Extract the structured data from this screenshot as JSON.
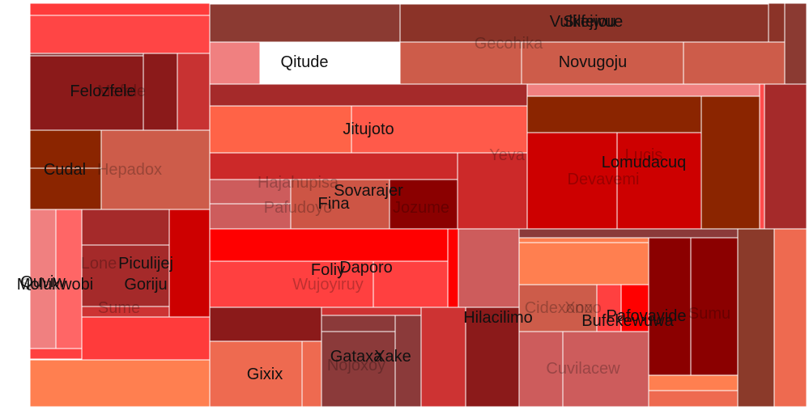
{
  "chart_data": {
    "type": "treemap",
    "title": "",
    "nodes": [
      {
        "id": "n1",
        "color": "#ff3b3b"
      },
      {
        "id": "n2",
        "color": "#ff4545"
      },
      {
        "id": "n3",
        "color": "#8b3a3a"
      },
      {
        "id": "n4",
        "color": "#ff3030"
      },
      {
        "id": "n5",
        "color": "#8b3a32"
      },
      {
        "id": "n6",
        "color": "#8b3328"
      },
      {
        "id": "n7",
        "color": "#f08080"
      },
      {
        "id": "n8",
        "color": "#cd5c4a"
      },
      {
        "id": "n9",
        "color": "#8b1a1a",
        "label": "Felozfele",
        "muted": false
      },
      {
        "id": "n10",
        "color": "#8b1a1a"
      },
      {
        "id": "n11",
        "color": "#c83232"
      },
      {
        "id": "n12",
        "color": "#a52a2a"
      },
      {
        "id": "n13",
        "color": "#ff6347"
      },
      {
        "id": "n14",
        "color": "#ff5a4a"
      },
      {
        "id": "n15",
        "color": "#8b2500",
        "label": "Cudal",
        "muted": false
      },
      {
        "id": "n16",
        "color": "#8b2500"
      },
      {
        "id": "n17",
        "color": "#cd5c4a",
        "label": "Hepadox",
        "muted": true
      },
      {
        "id": "n18",
        "color": "#cc2929"
      },
      {
        "id": "n19",
        "color": "#cd5c5c"
      },
      {
        "id": "n20",
        "color": "#cd5c5c"
      },
      {
        "id": "n21",
        "color": "#cd5545"
      },
      {
        "id": "n22",
        "color": "#8b0000",
        "label": "Jozume",
        "muted": true
      },
      {
        "id": "n23",
        "color": "#cc2929",
        "label": "Yeva",
        "muted": true
      },
      {
        "id": "n24",
        "color": "#f08080"
      },
      {
        "id": "n25",
        "color": "#8b2500"
      },
      {
        "id": "n26",
        "color": "#cd0000",
        "label": "Lomudacuq",
        "muted": false
      },
      {
        "id": "n27",
        "color": "#cd0000",
        "label": "Lucis",
        "muted": true
      },
      {
        "id": "n28",
        "color": "#8b2500"
      },
      {
        "id": "n29",
        "color": "#ff4c4c"
      },
      {
        "id": "n30",
        "color": "#a52a2a"
      },
      {
        "id": "n31",
        "color": "#f08080"
      },
      {
        "id": "n32",
        "color": "#ff6666"
      },
      {
        "id": "n33",
        "color": "#ff4040"
      },
      {
        "id": "n34",
        "color": "#a52a2a",
        "label": "Piculijej",
        "muted": false
      },
      {
        "id": "n35",
        "color": "#a52a2a",
        "label": "Goriju",
        "muted": false
      },
      {
        "id": "n36",
        "color": "#cd0000"
      },
      {
        "id": "n37",
        "color": "#cd3333"
      },
      {
        "id": "n38",
        "color": "#ff3b3b"
      },
      {
        "id": "n39",
        "color": "#ff7f50"
      },
      {
        "id": "n40",
        "color": "#ff0000"
      },
      {
        "id": "n41",
        "color": "#ff4040",
        "label": "Foliy",
        "muted": false
      },
      {
        "id": "n42",
        "color": "#ff4040",
        "label": "Wujoyiruy",
        "muted": true
      },
      {
        "id": "n43",
        "color": "#ff0000"
      },
      {
        "id": "n44",
        "color": "#ff0000"
      },
      {
        "id": "n45",
        "color": "#8b1a1a"
      },
      {
        "id": "n46",
        "color": "#cd3333"
      },
      {
        "id": "n47",
        "color": "#ee6a50",
        "label": "Gixix",
        "muted": false
      },
      {
        "id": "n48",
        "color": "#ee6a50"
      },
      {
        "id": "n49",
        "color": "#8b3a3a",
        "label": "Xake",
        "muted": false
      },
      {
        "id": "n50",
        "color": "#8b3a3a"
      },
      {
        "id": "n51",
        "color": "#8b3a3a"
      },
      {
        "id": "n52",
        "color": "#cd3333"
      },
      {
        "id": "n53",
        "color": "#8b1a1a"
      },
      {
        "id": "n54",
        "color": "#cd5c5c",
        "label": "Hilacilimo",
        "muted": false
      },
      {
        "id": "n55",
        "color": "#8b3a3a"
      },
      {
        "id": "n56",
        "color": "#ff7f50"
      },
      {
        "id": "n57",
        "color": "#cd5c4a",
        "label": "Cidexono",
        "muted": true
      },
      {
        "id": "n58",
        "color": "#ff0000"
      },
      {
        "id": "n59",
        "color": "#cd5c5c",
        "label": "Cuvilacew",
        "muted": true
      },
      {
        "id": "n60",
        "color": "#8b0000"
      },
      {
        "id": "n61",
        "color": "#8b0000"
      },
      {
        "id": "n62",
        "color": "#ee6a50"
      },
      {
        "id": "n63",
        "color": "#8b3a2a"
      },
      {
        "id": "n64",
        "color": "#ee6a50"
      },
      {
        "id": "n65",
        "color": "#ff4040"
      },
      {
        "id": "n66",
        "color": "#ff7f50"
      },
      {
        "id": "n67",
        "color": "#ff7f50"
      }
    ],
    "floating_labels": [
      {
        "id": "f1",
        "label": "Vulkejwue",
        "muted": false
      },
      {
        "id": "f2",
        "label": "Silfejou",
        "muted": false
      },
      {
        "id": "f3",
        "label": "Gecohika",
        "muted": true
      },
      {
        "id": "f4",
        "label": "Qitude",
        "muted": false
      },
      {
        "id": "f5",
        "label": "Novugoju",
        "muted": false
      },
      {
        "id": "f6",
        "label": "Mefele",
        "muted": true
      },
      {
        "id": "f7",
        "label": "Jitujoto",
        "muted": false
      },
      {
        "id": "f8",
        "label": "Devavemi",
        "muted": true
      },
      {
        "id": "f9",
        "label": "Hajahupisa",
        "muted": true
      },
      {
        "id": "f10",
        "label": "Sovarajer",
        "muted": false
      },
      {
        "id": "f11",
        "label": "Fina",
        "muted": false
      },
      {
        "id": "f12",
        "label": "Pafudoyo",
        "muted": true
      },
      {
        "id": "f13",
        "label": "Lone",
        "muted": true
      },
      {
        "id": "f14",
        "label": "Quviw",
        "muted": false
      },
      {
        "id": "f15",
        "label": "Molukwobi",
        "muted": false
      },
      {
        "id": "f16",
        "label": "Sulaw",
        "muted": true
      },
      {
        "id": "f17",
        "label": "Sume",
        "muted": true
      },
      {
        "id": "f18",
        "label": "Daporo",
        "muted": false
      },
      {
        "id": "f19",
        "label": "Gataxa",
        "muted": false
      },
      {
        "id": "f20",
        "label": "Nojoxoy",
        "muted": true
      },
      {
        "id": "f21",
        "label": "Bufekewuwa",
        "muted": false
      },
      {
        "id": "f22",
        "label": "Pafovayide",
        "muted": false
      },
      {
        "id": "f23",
        "label": "Xoxo",
        "muted": true
      },
      {
        "id": "f24",
        "label": "Sumu",
        "muted": true
      }
    ]
  }
}
